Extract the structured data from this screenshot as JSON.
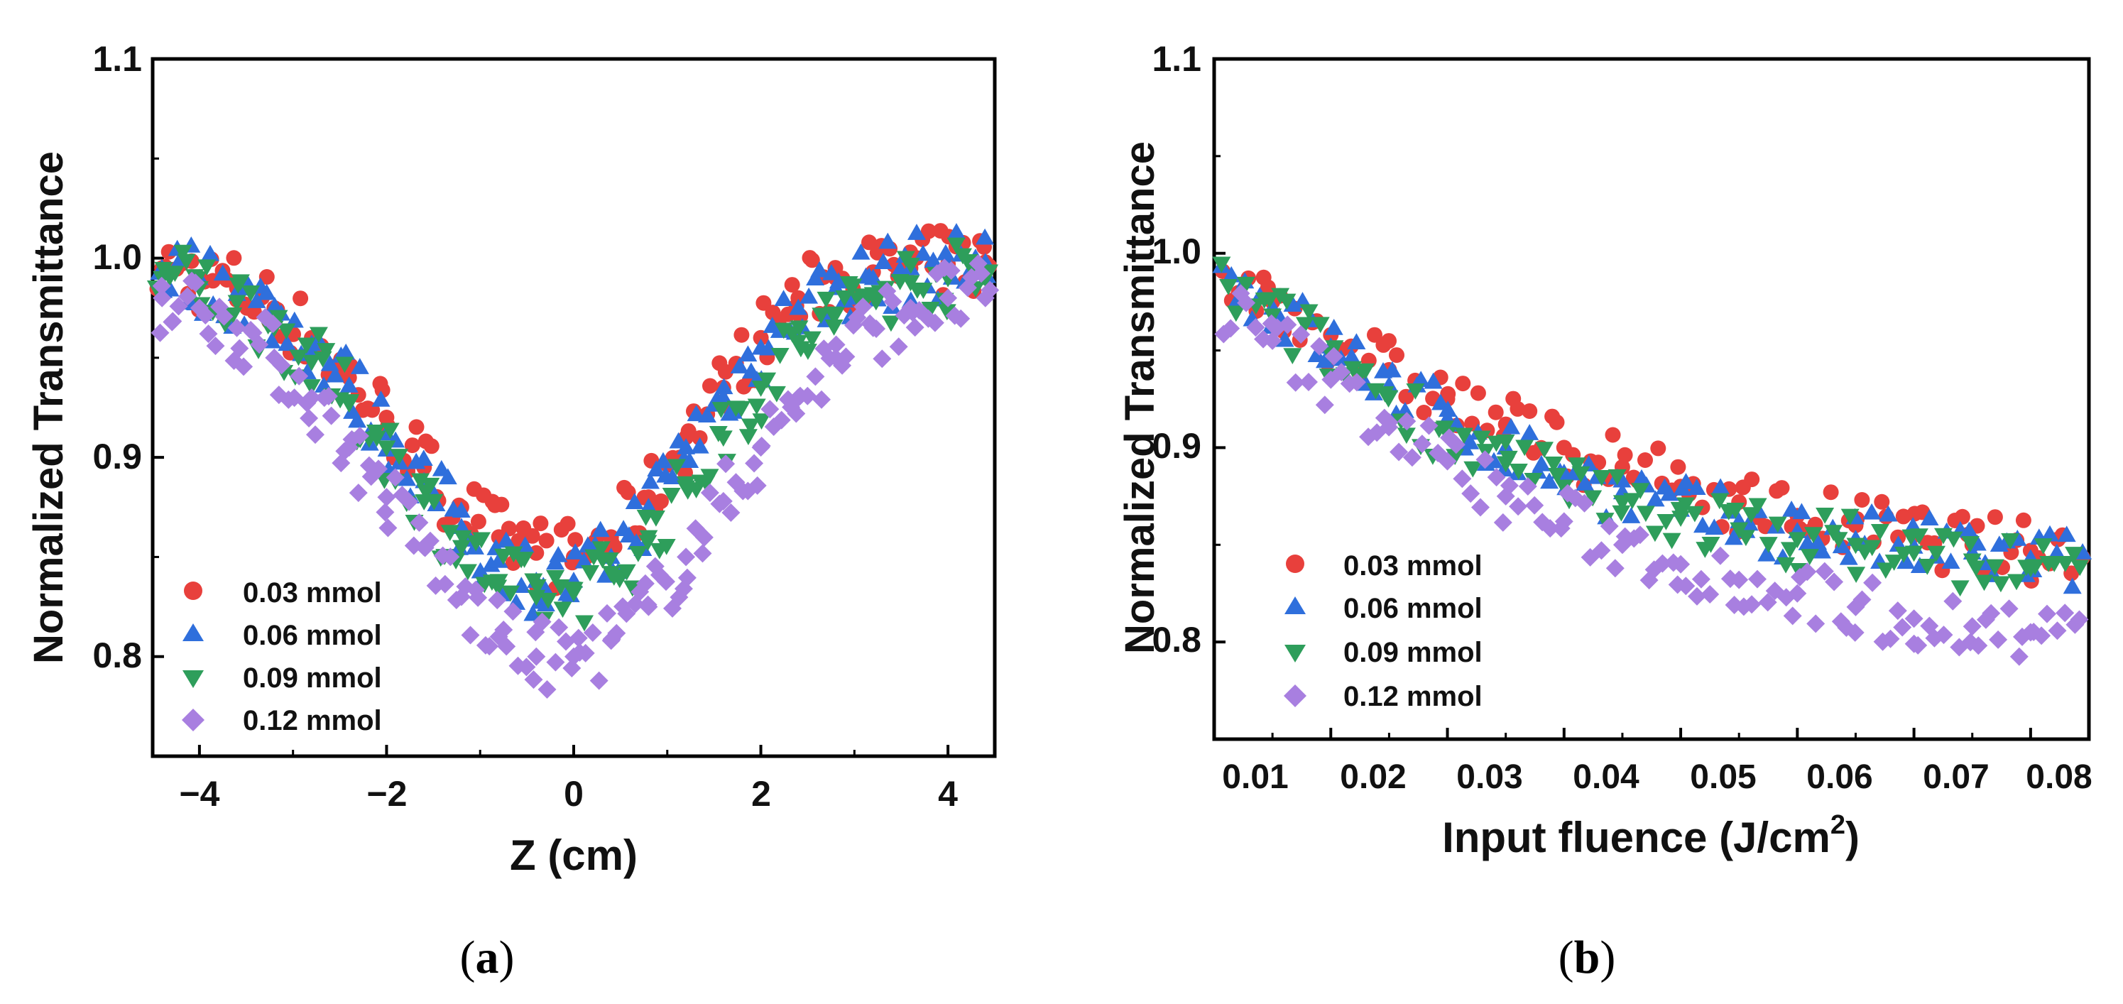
{
  "panels": [
    {
      "label_open": "(",
      "label_letter": "a",
      "label_close": ")"
    },
    {
      "label_open": "(",
      "label_letter": "b",
      "label_close": ")"
    }
  ],
  "chart_data": [
    {
      "type": "scatter",
      "xlabel": "Z (cm)",
      "ylabel": "Normalized Transmittance",
      "xlim": [
        -4.5,
        4.5
      ],
      "ylim": [
        0.75,
        1.1
      ],
      "xticks": [
        -4,
        -2,
        0,
        2,
        4
      ],
      "xtick_labels": [
        "−4",
        "−2",
        "0",
        "2",
        "4"
      ],
      "yticks": [
        0.8,
        0.9,
        1.0,
        1.1
      ],
      "ytick_labels": [
        "0.8",
        "0.9",
        "1.0",
        "1.1"
      ],
      "grid": false,
      "legend_position": "bottom-left",
      "x": [
        -4.4,
        -4.0,
        -3.6,
        -3.2,
        -2.8,
        -2.4,
        -2.0,
        -1.6,
        -1.2,
        -0.8,
        -0.4,
        0.0,
        0.4,
        0.8,
        1.2,
        1.6,
        2.0,
        2.4,
        2.8,
        3.2,
        3.6,
        4.0,
        4.4
      ],
      "series": [
        {
          "name": "0.03 mmol",
          "marker": "circle",
          "color": "#e8403c",
          "y": [
            0.995,
            0.99,
            0.985,
            0.975,
            0.96,
            0.94,
            0.92,
            0.895,
            0.875,
            0.86,
            0.852,
            0.85,
            0.86,
            0.88,
            0.91,
            0.935,
            0.96,
            0.98,
            0.99,
            0.993,
            0.995,
            0.997,
            0.998
          ]
        },
        {
          "name": "0.06 mmol",
          "marker": "triangle-up",
          "color": "#2f6fdc",
          "y": [
            0.995,
            0.99,
            0.982,
            0.972,
            0.957,
            0.936,
            0.912,
            0.888,
            0.865,
            0.848,
            0.838,
            0.838,
            0.85,
            0.875,
            0.905,
            0.93,
            0.955,
            0.975,
            0.985,
            0.99,
            0.995,
            0.997,
            0.998
          ]
        },
        {
          "name": "0.09 mmol",
          "marker": "triangle-down",
          "color": "#2e9e5b",
          "y": [
            0.99,
            0.985,
            0.978,
            0.965,
            0.948,
            0.927,
            0.905,
            0.878,
            0.855,
            0.838,
            0.83,
            0.832,
            0.842,
            0.86,
            0.885,
            0.91,
            0.935,
            0.958,
            0.972,
            0.982,
            0.988,
            0.99,
            0.99
          ]
        },
        {
          "name": "0.12 mmol",
          "marker": "diamond",
          "color": "#a87fe0",
          "y": [
            0.98,
            0.975,
            0.965,
            0.95,
            0.93,
            0.905,
            0.88,
            0.855,
            0.83,
            0.81,
            0.8,
            0.8,
            0.808,
            0.825,
            0.85,
            0.878,
            0.905,
            0.93,
            0.95,
            0.965,
            0.975,
            0.98,
            0.98
          ]
        }
      ]
    },
    {
      "type": "scatter",
      "xlabel_main": "Input  fluence (J/cm",
      "xlabel_sup": "2",
      "xlabel_end": ")",
      "ylabel": "Normalized Transmittance",
      "xlim": [
        0.01,
        0.085
      ],
      "ylim": [
        0.75,
        1.1
      ],
      "xticks": [
        0.01,
        0.02,
        0.03,
        0.04,
        0.05,
        0.06,
        0.07,
        0.08
      ],
      "xtick_labels": [
        "0.01",
        "0.02",
        "0.03",
        "0.04",
        "0.05",
        "0.06",
        "0.07",
        "0.08"
      ],
      "yticks": [
        0.8,
        0.9,
        1.0,
        1.1
      ],
      "ytick_labels": [
        "0.8",
        "0.9",
        "1.0",
        "1.1"
      ],
      "grid": false,
      "legend_position": "bottom-left",
      "x": [
        0.01,
        0.015,
        0.02,
        0.025,
        0.03,
        0.035,
        0.04,
        0.045,
        0.05,
        0.055,
        0.06,
        0.065,
        0.07,
        0.075,
        0.08,
        0.085
      ],
      "series": [
        {
          "name": "0.03 mmol",
          "marker": "circle",
          "color": "#e8403c",
          "y": [
            0.99,
            0.975,
            0.958,
            0.94,
            0.925,
            0.912,
            0.9,
            0.89,
            0.88,
            0.872,
            0.865,
            0.86,
            0.855,
            0.85,
            0.847,
            0.845
          ]
        },
        {
          "name": "0.06 mmol",
          "marker": "triangle-up",
          "color": "#2f6fdc",
          "y": [
            0.99,
            0.972,
            0.952,
            0.932,
            0.915,
            0.9,
            0.887,
            0.877,
            0.868,
            0.862,
            0.857,
            0.853,
            0.849,
            0.846,
            0.843,
            0.84
          ]
        },
        {
          "name": "0.09 mmol",
          "marker": "triangle-down",
          "color": "#2e9e5b",
          "y": [
            0.985,
            0.968,
            0.948,
            0.926,
            0.907,
            0.892,
            0.88,
            0.872,
            0.864,
            0.858,
            0.853,
            0.85,
            0.846,
            0.842,
            0.838,
            0.835
          ]
        },
        {
          "name": "0.12 mmol",
          "marker": "diamond",
          "color": "#a87fe0",
          "y": [
            0.975,
            0.955,
            0.935,
            0.913,
            0.893,
            0.875,
            0.862,
            0.85,
            0.84,
            0.832,
            0.825,
            0.818,
            0.812,
            0.808,
            0.805,
            0.802
          ]
        }
      ]
    }
  ]
}
